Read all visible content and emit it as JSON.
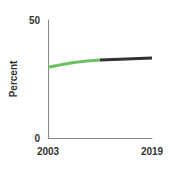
{
  "chart_data": {
    "type": "line",
    "y_label": "Percent",
    "x": [
      2003,
      2005,
      2007,
      2009,
      2011,
      2013,
      2015,
      2017,
      2019
    ],
    "series": [
      {
        "color": "#6cc05f",
        "line_style": "solid",
        "values": [
          30,
          31,
          32,
          32.6,
          33.1,
          null,
          null,
          null,
          null
        ]
      },
      {
        "color": "#333333",
        "line_style": "solid",
        "values": [
          null,
          null,
          null,
          null,
          33.1,
          33.3,
          33.5,
          33.7,
          33.9
        ]
      }
    ],
    "xlim": [
      2003,
      2019
    ],
    "xticks": [
      2003,
      2019
    ],
    "ylim": [
      0,
      50
    ],
    "yticks": [
      0,
      50
    ],
    "grid": false
  }
}
